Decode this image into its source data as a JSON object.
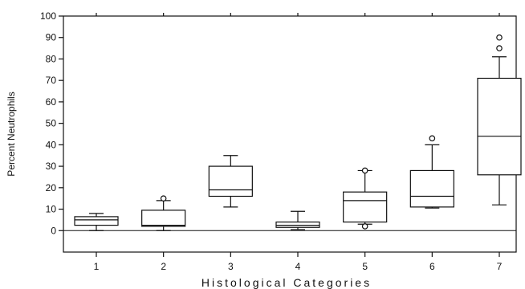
{
  "chart_data": {
    "type": "box",
    "title": "",
    "xlabel": "Histological Categories",
    "ylabel": "Percent Neutrophils",
    "ylim": [
      -10,
      100
    ],
    "yticks": [
      0,
      10,
      20,
      30,
      40,
      50,
      60,
      70,
      80,
      90,
      100
    ],
    "categories": [
      "1",
      "2",
      "3",
      "4",
      "5",
      "6",
      "7"
    ],
    "grid": false,
    "reference_line_y": 0,
    "boxes": [
      {
        "category": "1",
        "whisker_low": 0,
        "q1": 2.5,
        "median": 5,
        "q3": 6.5,
        "whisker_high": 8,
        "outliers": []
      },
      {
        "category": "2",
        "whisker_low": 0,
        "q1": 2,
        "median": 2.5,
        "q3": 9.5,
        "whisker_high": 14,
        "outliers": [
          15
        ]
      },
      {
        "category": "3",
        "whisker_low": 11,
        "q1": 16,
        "median": 19,
        "q3": 30,
        "whisker_high": 35,
        "outliers": []
      },
      {
        "category": "4",
        "whisker_low": 0.5,
        "q1": 1.5,
        "median": 2.5,
        "q3": 4,
        "whisker_high": 9,
        "outliers": []
      },
      {
        "category": "5",
        "whisker_low": 3,
        "q1": 4,
        "median": 14,
        "q3": 18,
        "whisker_high": 28,
        "outliers": [
          2,
          28
        ]
      },
      {
        "category": "6",
        "whisker_low": 10.5,
        "q1": 11,
        "median": 16,
        "q3": 28,
        "whisker_high": 40,
        "outliers": [
          43
        ]
      },
      {
        "category": "7",
        "whisker_low": 12,
        "q1": 26,
        "median": 44,
        "q3": 71,
        "whisker_high": 81,
        "outliers": [
          85,
          90
        ]
      }
    ]
  }
}
